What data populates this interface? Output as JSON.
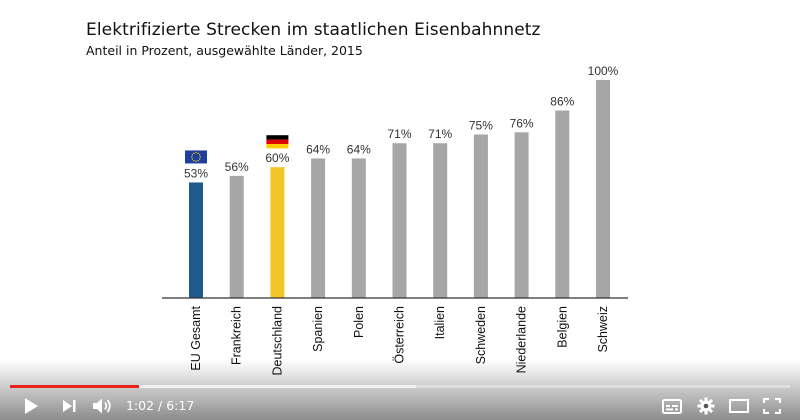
{
  "chart_data": {
    "type": "bar",
    "title": "Elektrifizierte Strecken im staatlichen Eisenbahnnetz",
    "subtitle": "Anteil in Prozent, ausgewählte Länder, 2015",
    "categories": [
      "EU Gesamt",
      "Frankreich",
      "Deutschland",
      "Spanien",
      "Polen",
      "Österreich",
      "Italien",
      "Schweden",
      "Niederlande",
      "Belgien",
      "Schweiz"
    ],
    "values": [
      53,
      56,
      60,
      64,
      64,
      71,
      71,
      75,
      76,
      86,
      100
    ],
    "value_labels": [
      "53%",
      "56%",
      "60%",
      "64%",
      "64%",
      "71%",
      "71%",
      "75%",
      "76%",
      "86%",
      "100%"
    ],
    "colors": [
      "#1e5a8c",
      "#a6a6a6",
      "#f2c626",
      "#a6a6a6",
      "#a6a6a6",
      "#a6a6a6",
      "#a6a6a6",
      "#a6a6a6",
      "#a6a6a6",
      "#a6a6a6",
      "#a6a6a6"
    ],
    "highlight_flags": {
      "EU Gesamt": "eu-flag-icon",
      "Deutschland": "germany-flag-icon"
    },
    "ylim": [
      0,
      100
    ],
    "grid": false
  },
  "player": {
    "time": "1:02 / 6:17",
    "progress_played": 0.165,
    "progress_loaded": 0.52,
    "accent_color": "#e8211a",
    "icons": {
      "play": "play-icon",
      "next": "next-icon",
      "volume": "volume-icon",
      "captions": "subtitles-icon",
      "settings": "gear-icon",
      "theater": "theater-mode-icon",
      "fullscreen": "fullscreen-icon"
    }
  }
}
